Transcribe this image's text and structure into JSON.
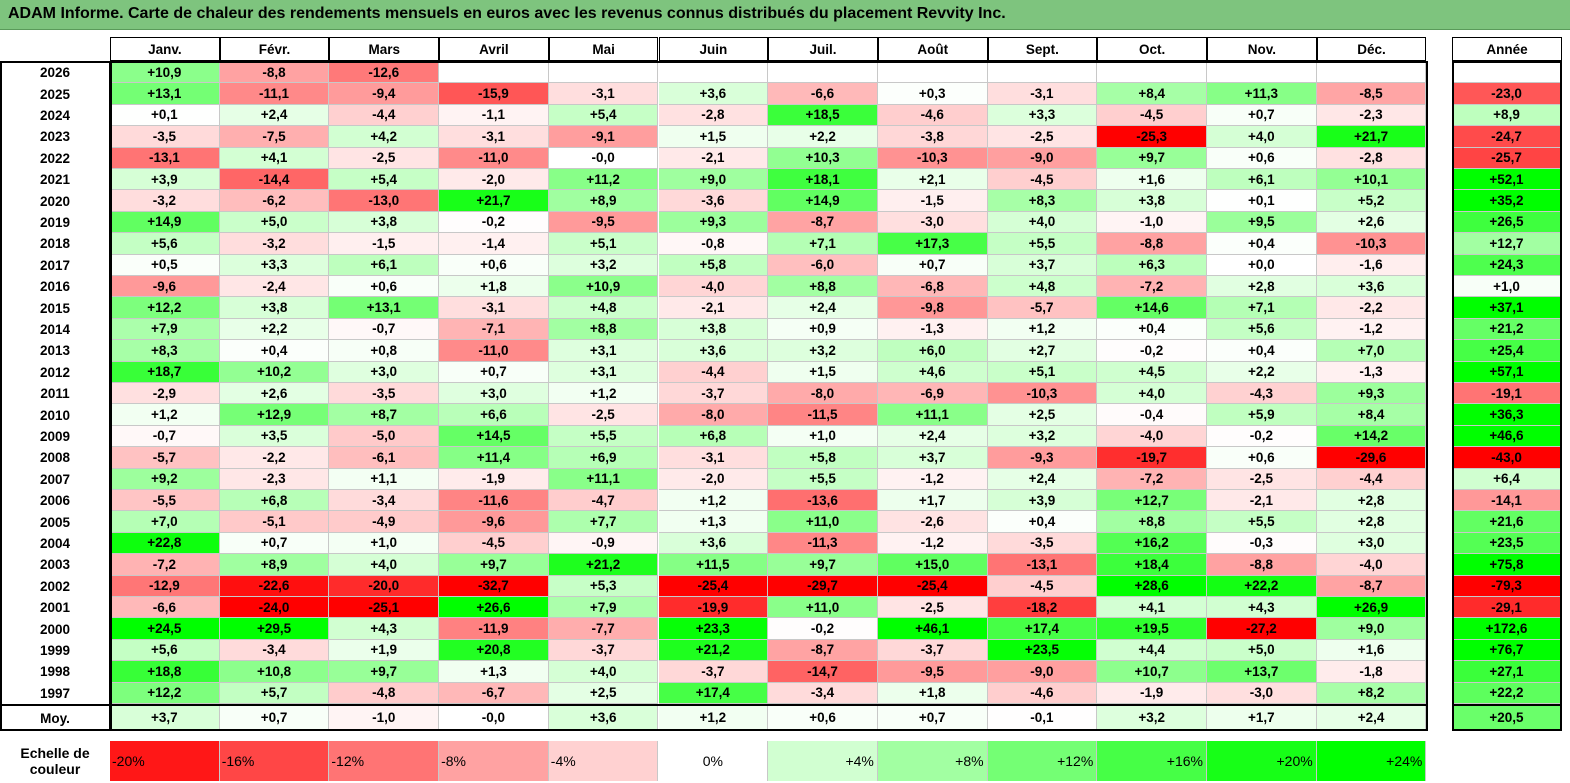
{
  "title": "ADAM Informe. Carte de chaleur des rendements mensuels en euros avec les revenus connus distribués du placement Revvity Inc.",
  "months": [
    "Janv.",
    "Févr.",
    "Mars",
    "Avril",
    "Mai",
    "Juin",
    "Juil.",
    "Août",
    "Sept.",
    "Oct.",
    "Nov.",
    "Déc."
  ],
  "year_header": "Année",
  "avg_label": "Moy.",
  "scale_label_line1": "Echelle de",
  "scale_label_line2": "couleur",
  "scale": [
    "-20%",
    "-16%",
    "-12%",
    "-8%",
    "-4%",
    "0%",
    "+4%",
    "+8%",
    "+12%",
    "+16%",
    "+20%",
    "+24%"
  ],
  "colors": {
    "negative": "#ff0000",
    "positive": "#00ff00",
    "neutral": "#ffffff",
    "title_bg": "#7ec47e"
  },
  "chart_data": {
    "type": "heatmap",
    "rows": [
      {
        "year": "2026",
        "m": [
          "+10,9",
          "-8,8",
          "-12,6",
          "",
          "",
          "",
          "",
          "",
          "",
          "",
          "",
          ""
        ],
        "y": ""
      },
      {
        "year": "2025",
        "m": [
          "+13,1",
          "-11,1",
          "-9,4",
          "-15,9",
          "-3,1",
          "+3,6",
          "-6,6",
          "+0,3",
          "-3,1",
          "+8,4",
          "+11,3",
          "-8,5"
        ],
        "y": "-23,0"
      },
      {
        "year": "2024",
        "m": [
          "+0,1",
          "+2,4",
          "-4,4",
          "-1,1",
          "+5,4",
          "-2,8",
          "+18,5",
          "-4,6",
          "+3,3",
          "-4,5",
          "+0,7",
          "-2,3"
        ],
        "y": "+8,9"
      },
      {
        "year": "2023",
        "m": [
          "-3,5",
          "-7,5",
          "+4,2",
          "-3,1",
          "-9,1",
          "+1,5",
          "+2,2",
          "-3,8",
          "-2,5",
          "-25,3",
          "+4,0",
          "+21,7"
        ],
        "y": "-24,7"
      },
      {
        "year": "2022",
        "m": [
          "-13,1",
          "+4,1",
          "-2,5",
          "-11,0",
          "-0,0",
          "-2,1",
          "+10,3",
          "-10,3",
          "-9,0",
          "+9,7",
          "+0,6",
          "-2,8"
        ],
        "y": "-25,7"
      },
      {
        "year": "2021",
        "m": [
          "+3,9",
          "-14,4",
          "+5,4",
          "-2,0",
          "+11,2",
          "+9,0",
          "+18,1",
          "+2,1",
          "-4,5",
          "+1,6",
          "+6,1",
          "+10,1"
        ],
        "y": "+52,1"
      },
      {
        "year": "2020",
        "m": [
          "-3,2",
          "-6,2",
          "-13,0",
          "+21,7",
          "+8,9",
          "-3,6",
          "+14,9",
          "-1,5",
          "+8,3",
          "+3,8",
          "+0,1",
          "+5,2"
        ],
        "y": "+35,2"
      },
      {
        "year": "2019",
        "m": [
          "+14,9",
          "+5,0",
          "+3,8",
          "-0,2",
          "-9,5",
          "+9,3",
          "-8,7",
          "-3,0",
          "+4,0",
          "-1,0",
          "+9,5",
          "+2,6"
        ],
        "y": "+26,5"
      },
      {
        "year": "2018",
        "m": [
          "+5,6",
          "-3,2",
          "-1,5",
          "-1,4",
          "+5,1",
          "-0,8",
          "+7,1",
          "+17,3",
          "+5,5",
          "-8,8",
          "+0,4",
          "-10,3"
        ],
        "y": "+12,7"
      },
      {
        "year": "2017",
        "m": [
          "+0,5",
          "+3,3",
          "+6,1",
          "+0,6",
          "+3,2",
          "+5,8",
          "-6,0",
          "+0,7",
          "+3,7",
          "+6,3",
          "+0,0",
          "-1,6"
        ],
        "y": "+24,3"
      },
      {
        "year": "2016",
        "m": [
          "-9,6",
          "-2,4",
          "+0,6",
          "+1,8",
          "+10,9",
          "-4,0",
          "+8,8",
          "-6,8",
          "+4,8",
          "-7,2",
          "+2,8",
          "+3,6"
        ],
        "y": "+1,0"
      },
      {
        "year": "2015",
        "m": [
          "+12,2",
          "+3,8",
          "+13,1",
          "-3,1",
          "+4,8",
          "-2,1",
          "+2,4",
          "-9,8",
          "-5,7",
          "+14,6",
          "+7,1",
          "-2,2"
        ],
        "y": "+37,1"
      },
      {
        "year": "2014",
        "m": [
          "+7,9",
          "+2,2",
          "-0,7",
          "-7,1",
          "+8,8",
          "+3,8",
          "+0,9",
          "-1,3",
          "+1,2",
          "+0,4",
          "+5,6",
          "-1,2"
        ],
        "y": "+21,2"
      },
      {
        "year": "2013",
        "m": [
          "+8,3",
          "+0,4",
          "+0,8",
          "-11,0",
          "+3,1",
          "+3,6",
          "+3,2",
          "+6,0",
          "+2,7",
          "-0,2",
          "+0,4",
          "+7,0"
        ],
        "y": "+25,4"
      },
      {
        "year": "2012",
        "m": [
          "+18,7",
          "+10,2",
          "+3,0",
          "+0,7",
          "+3,1",
          "-4,4",
          "+1,5",
          "+4,6",
          "+5,1",
          "+4,5",
          "+2,2",
          "-1,3"
        ],
        "y": "+57,1"
      },
      {
        "year": "2011",
        "m": [
          "-2,9",
          "+2,6",
          "-3,5",
          "+3,0",
          "+1,2",
          "-3,7",
          "-8,0",
          "-6,9",
          "-10,3",
          "+4,0",
          "-4,3",
          "+9,3"
        ],
        "y": "-19,1"
      },
      {
        "year": "2010",
        "m": [
          "+1,2",
          "+12,9",
          "+8,7",
          "+6,6",
          "-2,5",
          "-8,0",
          "-11,5",
          "+11,1",
          "+2,5",
          "-0,4",
          "+5,9",
          "+8,4"
        ],
        "y": "+36,3"
      },
      {
        "year": "2009",
        "m": [
          "-0,7",
          "+3,5",
          "-5,0",
          "+14,5",
          "+5,5",
          "+6,8",
          "+1,0",
          "+2,4",
          "+3,2",
          "-4,0",
          "-0,2",
          "+14,2"
        ],
        "y": "+46,6"
      },
      {
        "year": "2008",
        "m": [
          "-5,7",
          "-2,2",
          "-6,1",
          "+11,4",
          "+6,9",
          "-3,1",
          "+5,8",
          "+3,7",
          "-9,3",
          "-19,7",
          "+0,6",
          "-29,6"
        ],
        "y": "-43,0"
      },
      {
        "year": "2007",
        "m": [
          "+9,2",
          "-2,3",
          "+1,1",
          "-1,9",
          "+11,1",
          "-2,0",
          "+5,5",
          "-1,2",
          "+2,4",
          "-7,2",
          "-2,5",
          "-4,4"
        ],
        "y": "+6,4"
      },
      {
        "year": "2006",
        "m": [
          "-5,5",
          "+6,8",
          "-3,4",
          "-11,6",
          "-4,7",
          "+1,2",
          "-13,6",
          "+1,7",
          "+3,9",
          "+12,7",
          "-2,1",
          "+2,8"
        ],
        "y": "-14,1"
      },
      {
        "year": "2005",
        "m": [
          "+7,0",
          "-5,1",
          "-4,9",
          "-9,6",
          "+7,7",
          "+1,3",
          "+11,0",
          "-2,6",
          "+0,4",
          "+8,8",
          "+5,5",
          "+2,8"
        ],
        "y": "+21,6"
      },
      {
        "year": "2004",
        "m": [
          "+22,8",
          "+0,7",
          "+1,0",
          "-4,5",
          "-0,9",
          "+3,6",
          "-11,3",
          "-1,2",
          "-3,5",
          "+16,2",
          "-0,3",
          "+3,0"
        ],
        "y": "+23,5"
      },
      {
        "year": "2003",
        "m": [
          "-7,2",
          "+8,9",
          "+4,0",
          "+9,7",
          "+21,2",
          "+11,5",
          "+9,7",
          "+15,0",
          "-13,1",
          "+18,4",
          "-8,8",
          "-4,0"
        ],
        "y": "+75,8"
      },
      {
        "year": "2002",
        "m": [
          "-12,9",
          "-22,6",
          "-20,0",
          "-32,7",
          "+5,3",
          "-25,4",
          "-29,7",
          "-25,4",
          "-4,5",
          "+28,6",
          "+22,2",
          "-8,7"
        ],
        "y": "-79,3"
      },
      {
        "year": "2001",
        "m": [
          "-6,6",
          "-24,0",
          "-25,1",
          "+26,6",
          "+7,9",
          "-19,9",
          "+11,0",
          "-2,5",
          "-18,2",
          "+4,1",
          "+4,3",
          "+26,9"
        ],
        "y": "-29,1"
      },
      {
        "year": "2000",
        "m": [
          "+24,5",
          "+29,5",
          "+4,3",
          "-11,9",
          "-7,7",
          "+23,3",
          "-0,2",
          "+46,1",
          "+17,4",
          "+19,5",
          "-27,2",
          "+9,0"
        ],
        "y": "+172,6"
      },
      {
        "year": "1999",
        "m": [
          "+5,6",
          "-3,4",
          "+1,9",
          "+20,8",
          "-3,7",
          "+21,2",
          "-8,7",
          "-3,7",
          "+23,5",
          "+4,4",
          "+5,0",
          "+1,6"
        ],
        "y": "+76,7"
      },
      {
        "year": "1998",
        "m": [
          "+18,8",
          "+10,8",
          "+9,7",
          "+1,3",
          "+4,0",
          "-3,7",
          "-14,7",
          "-9,5",
          "-9,0",
          "+10,7",
          "+13,7",
          "-1,8"
        ],
        "y": "+27,1"
      },
      {
        "year": "1997",
        "m": [
          "+12,2",
          "+5,7",
          "-4,8",
          "-6,7",
          "+2,5",
          "+17,4",
          "-3,4",
          "+1,8",
          "-4,6",
          "-1,9",
          "-3,0",
          "+8,2"
        ],
        "y": "+22,2"
      }
    ],
    "averages": {
      "m": [
        "+3,7",
        "+0,7",
        "-1,0",
        "-0,0",
        "+3,6",
        "+1,2",
        "+0,6",
        "+0,7",
        "-0,1",
        "+3,2",
        "+1,7",
        "+2,4"
      ],
      "y": "+20,5"
    }
  }
}
